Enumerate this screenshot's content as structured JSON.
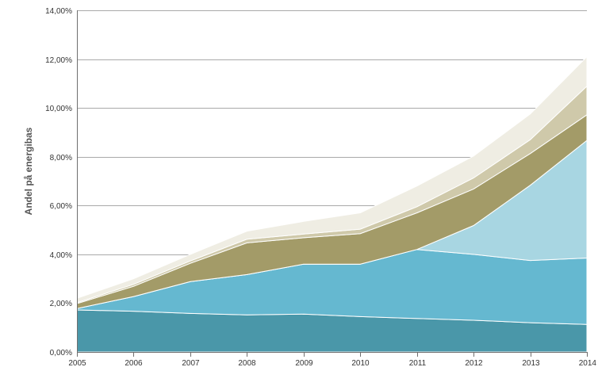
{
  "chart_data": {
    "type": "area",
    "stacked": true,
    "title": "",
    "xlabel": "",
    "ylabel": "Andel på energibas",
    "x": [
      2005,
      2006,
      2007,
      2008,
      2009,
      2010,
      2011,
      2012,
      2013,
      2014
    ],
    "x_tick_labels": [
      "2005",
      "2006",
      "2007",
      "2008",
      "2009",
      "2010",
      "2011",
      "2012",
      "2013",
      "2014"
    ],
    "ylim": [
      0,
      14
    ],
    "y_ticks": [
      0,
      2,
      4,
      6,
      8,
      10,
      12,
      14
    ],
    "y_tick_labels": [
      "0,00%",
      "2,00%",
      "4,00%",
      "6,00%",
      "8,00%",
      "10,00%",
      "12,00%",
      "14,00%"
    ],
    "y_unit": "percent",
    "grid": true,
    "legend": "none",
    "series": [
      {
        "color": "#4a97a9",
        "values": [
          1.72,
          1.67,
          1.58,
          1.52,
          1.55,
          1.45,
          1.37,
          1.3,
          1.2,
          1.13
        ]
      },
      {
        "color": "#65b8d0",
        "values": [
          0.06,
          0.6,
          1.3,
          1.65,
          2.05,
          2.15,
          2.83,
          2.7,
          2.55,
          2.72
        ]
      },
      {
        "color": "#a8d6e2",
        "values": [
          0.0,
          0.0,
          0.0,
          0.0,
          0.0,
          0.0,
          0.0,
          1.18,
          3.08,
          4.82
        ]
      },
      {
        "color": "#a39b68",
        "values": [
          0.2,
          0.42,
          0.75,
          1.3,
          1.08,
          1.25,
          1.5,
          1.5,
          1.3,
          1.05
        ]
      },
      {
        "color": "#cfc9aa",
        "values": [
          0.04,
          0.08,
          0.1,
          0.15,
          0.15,
          0.18,
          0.25,
          0.45,
          0.57,
          1.17
        ]
      },
      {
        "color": "#efede3",
        "values": [
          0.18,
          0.23,
          0.27,
          0.33,
          0.52,
          0.67,
          0.85,
          0.9,
          1.05,
          1.21
        ]
      }
    ]
  }
}
